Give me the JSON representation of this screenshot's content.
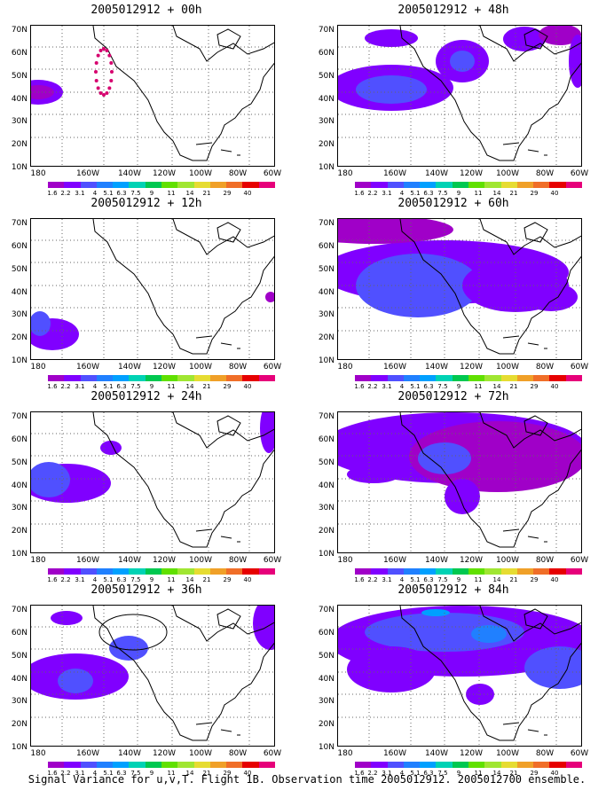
{
  "panels": [
    {
      "title": "2005012912 + 00h"
    },
    {
      "title": "2005012912 + 48h"
    },
    {
      "title": "2005012912 + 12h"
    },
    {
      "title": "2005012912 + 60h"
    },
    {
      "title": "2005012912 + 24h"
    },
    {
      "title": "2005012912 + 72h"
    },
    {
      "title": "2005012912 + 36h"
    },
    {
      "title": "2005012912 + 84h"
    }
  ],
  "axes": {
    "y_labels": [
      "70N",
      "60N",
      "50N",
      "40N",
      "30N",
      "20N",
      "10N"
    ],
    "x_labels": [
      "180",
      "160W",
      "140W",
      "120W",
      "100W",
      "80W",
      "60W"
    ]
  },
  "colorbar": {
    "labels": [
      "1.6",
      "2.2",
      "3.1",
      "4",
      "5.1",
      "6.3",
      "7.5",
      "9",
      "11",
      "14",
      "21",
      "29",
      "40"
    ],
    "colors": [
      "#a000c8",
      "#8000ff",
      "#5050ff",
      "#2080ff",
      "#00a0ff",
      "#00d2b4",
      "#00c850",
      "#60e000",
      "#a0e632",
      "#e6dc32",
      "#f0a028",
      "#f06e28",
      "#e60000",
      "#e6007a"
    ]
  },
  "caption": "Signal Variance for u,v,T. Flight 1B. Observation time 2005012912. 2005012700 ensemble."
}
